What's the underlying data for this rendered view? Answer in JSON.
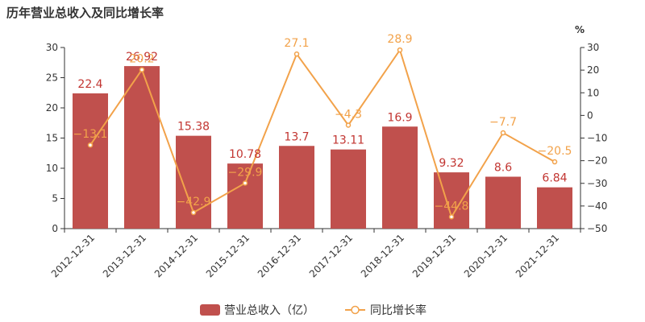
{
  "chart_data": {
    "type": "bar",
    "title": "历年营业总收入及同比增长率",
    "categories": [
      "2012-12-31",
      "2013-12-31",
      "2014-12-31",
      "2015-12-31",
      "2016-12-31",
      "2017-12-31",
      "2018-12-31",
      "2019-12-31",
      "2020-12-31",
      "2021-12-31"
    ],
    "series": [
      {
        "name": "营业总收入（亿）",
        "type": "bar",
        "color": "#c0504d",
        "axis": "left",
        "values": [
          22.4,
          26.92,
          15.38,
          10.78,
          13.7,
          13.11,
          16.9,
          9.32,
          8.6,
          6.84
        ],
        "labels": [
          "22.4",
          "26.92",
          "15.38",
          "10.78",
          "13.7",
          "13.11",
          "16.9",
          "9.32",
          "8.6",
          "6.84"
        ]
      },
      {
        "name": "同比增长率",
        "type": "line",
        "color": "#f2a24a",
        "axis": "right",
        "values": [
          -13.1,
          20.2,
          -42.9,
          -29.9,
          27.1,
          -4.3,
          28.9,
          -44.8,
          -7.7,
          -20.5
        ],
        "labels": [
          "−13.1",
          "20.2",
          "−42.9",
          "−29.9",
          "27.1",
          "−4.3",
          "28.9",
          "−44.8",
          "−7.7",
          "−20.5"
        ]
      }
    ],
    "left_axis": {
      "ylim": [
        0,
        30
      ],
      "ticks": [
        "0",
        "5",
        "10",
        "15",
        "20",
        "25",
        "30"
      ]
    },
    "right_axis": {
      "label": "%",
      "ylim": [
        -50,
        30
      ],
      "ticks": [
        "−50",
        "−40",
        "−30",
        "−20",
        "−10",
        "0",
        "10",
        "20",
        "30"
      ]
    },
    "legend_position": "bottom-center",
    "grid": false
  }
}
